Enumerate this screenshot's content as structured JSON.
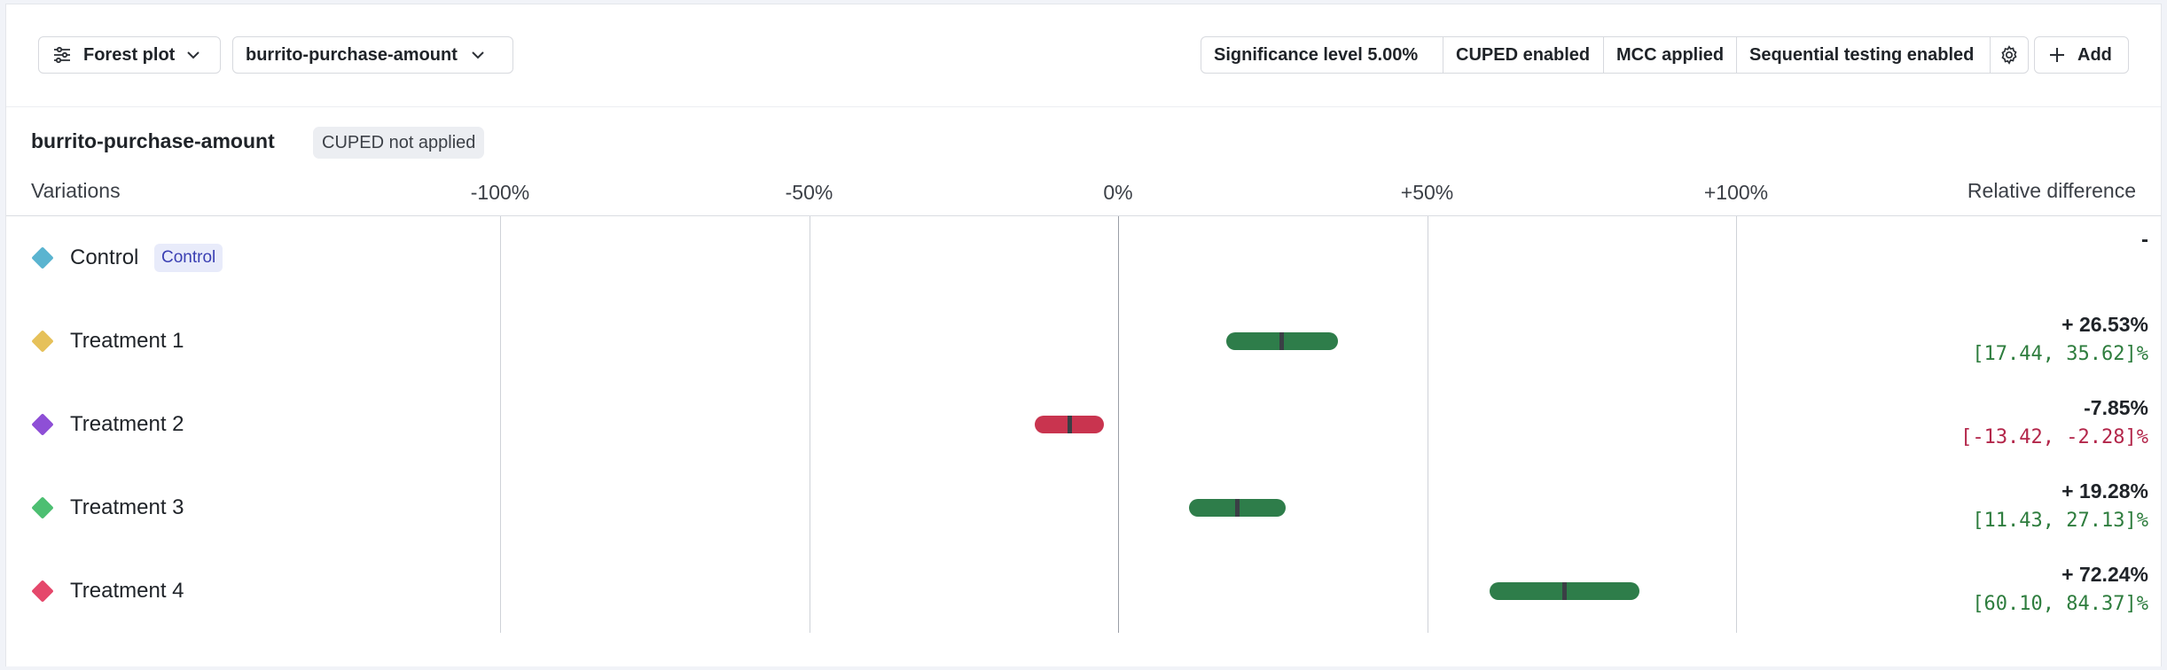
{
  "toolbar": {
    "forest_plot_label": "Forest plot",
    "metric_selector_label": "burrito-purchase-amount",
    "settings": [
      "Significance level 5.00%",
      "CUPED enabled",
      "MCC applied",
      "Sequential testing enabled"
    ],
    "add_label": "Add"
  },
  "metric": {
    "title": "burrito-purchase-amount",
    "cuped_badge": "CUPED not applied"
  },
  "columns": {
    "variations": "Variations",
    "relative_difference": "Relative difference"
  },
  "chart_data": {
    "type": "forest",
    "x_ticks": [
      "-100%",
      "-50%",
      "0%",
      "+50%",
      "+100%"
    ],
    "xlim": [
      -100,
      100
    ],
    "rows": [
      {
        "name": "Control",
        "badge": "Control",
        "color": "#5ab4d0",
        "estimate": null,
        "ci": null,
        "value_label": "-",
        "ci_label": ""
      },
      {
        "name": "Treatment 1",
        "color": "#e6c15a",
        "estimate": 26.53,
        "ci": [
          17.44,
          35.62
        ],
        "value_label": "+ 26.53%",
        "ci_label": "[17.44, 35.62]%",
        "sign": "pos"
      },
      {
        "name": "Treatment 2",
        "color": "#8e4fd6",
        "estimate": -7.85,
        "ci": [
          -13.42,
          -2.28
        ],
        "value_label": "-7.85%",
        "ci_label": "[-13.42, -2.28]%",
        "sign": "neg"
      },
      {
        "name": "Treatment 3",
        "color": "#4dbf72",
        "estimate": 19.28,
        "ci": [
          11.43,
          27.13
        ],
        "value_label": "+ 19.28%",
        "ci_label": "[11.43, 27.13]%",
        "sign": "pos"
      },
      {
        "name": "Treatment 4",
        "color": "#e5486b",
        "estimate": 72.24,
        "ci": [
          60.1,
          84.37
        ],
        "value_label": "+ 72.24%",
        "ci_label": "[60.10, 84.37]%",
        "sign": "pos"
      }
    ],
    "colors": {
      "positive": "#2e7d4a",
      "negative": "#c9344f"
    }
  }
}
